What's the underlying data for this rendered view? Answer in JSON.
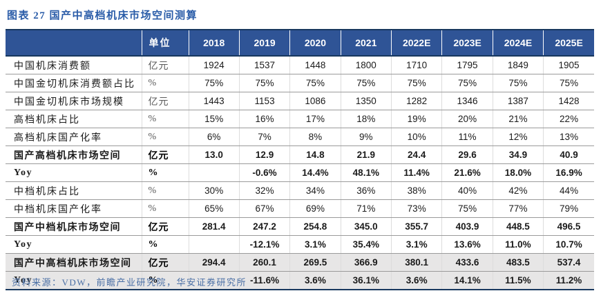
{
  "title": "图表 27  国产中高档机床市场空间测算",
  "table": {
    "unit_header": "单位",
    "year_headers": [
      "2018",
      "2019",
      "2020",
      "2021",
      "2022E",
      "2023E",
      "2024E",
      "2025E"
    ],
    "rows": [
      {
        "label": "中国机床消费额",
        "unit": "亿元",
        "bold": false,
        "shaded": false,
        "values": [
          "1924",
          "1537",
          "1448",
          "1800",
          "1710",
          "1795",
          "1849",
          "1905"
        ]
      },
      {
        "label": "中国金切机床消费额占比",
        "unit": "%",
        "bold": false,
        "shaded": false,
        "values": [
          "75%",
          "75%",
          "75%",
          "75%",
          "75%",
          "75%",
          "75%",
          "75%"
        ]
      },
      {
        "label": "中国金切机床市场规模",
        "unit": "亿元",
        "bold": false,
        "shaded": false,
        "values": [
          "1443",
          "1153",
          "1086",
          "1350",
          "1282",
          "1346",
          "1387",
          "1428"
        ]
      },
      {
        "label": "高档机床占比",
        "unit": "%",
        "bold": false,
        "shaded": false,
        "values": [
          "15%",
          "16%",
          "17%",
          "18%",
          "19%",
          "20%",
          "21%",
          "22%"
        ]
      },
      {
        "label": "高档机床国产化率",
        "unit": "%",
        "bold": false,
        "shaded": false,
        "values": [
          "6%",
          "7%",
          "8%",
          "9%",
          "10%",
          "11%",
          "12%",
          "13%"
        ]
      },
      {
        "label": "国产高档机床市场空间",
        "unit": "亿元",
        "bold": true,
        "shaded": false,
        "values": [
          "13.0",
          "12.9",
          "14.8",
          "21.9",
          "24.4",
          "29.6",
          "34.9",
          "40.9"
        ]
      },
      {
        "label": "Yoy",
        "unit": "%",
        "bold": true,
        "shaded": false,
        "values": [
          "",
          "-0.6%",
          "14.4%",
          "48.1%",
          "11.4%",
          "21.6%",
          "18.0%",
          "16.9%"
        ]
      },
      {
        "label": "中档机床占比",
        "unit": "%",
        "bold": false,
        "shaded": false,
        "values": [
          "30%",
          "32%",
          "34%",
          "36%",
          "38%",
          "40%",
          "42%",
          "44%"
        ]
      },
      {
        "label": "中档机床国产化率",
        "unit": "%",
        "bold": false,
        "shaded": false,
        "values": [
          "65%",
          "67%",
          "69%",
          "71%",
          "73%",
          "75%",
          "77%",
          "79%"
        ]
      },
      {
        "label": "国产中档机床市场空间",
        "unit": "亿元",
        "bold": true,
        "shaded": false,
        "values": [
          "281.4",
          "247.2",
          "254.8",
          "345.0",
          "355.7",
          "403.9",
          "448.5",
          "496.5"
        ]
      },
      {
        "label": "Yoy",
        "unit": "%",
        "bold": true,
        "shaded": false,
        "values": [
          "",
          "-12.1%",
          "3.1%",
          "35.4%",
          "3.1%",
          "13.6%",
          "11.0%",
          "10.7%"
        ]
      },
      {
        "label": "国产中高档机床市场空间",
        "unit": "亿元",
        "bold": true,
        "shaded": true,
        "values": [
          "294.4",
          "260.1",
          "269.5",
          "366.9",
          "380.1",
          "433.6",
          "483.5",
          "537.4"
        ]
      },
      {
        "label": "Yoy",
        "unit": "%",
        "bold": true,
        "shaded": true,
        "values": [
          "",
          "-11.6%",
          "3.6%",
          "36.1%",
          "3.6%",
          "14.1%",
          "11.5%",
          "11.2%"
        ]
      }
    ]
  },
  "footer": "资料来源：VDW，前瞻产业研究院，华安证券研究所",
  "colors": {
    "title_color": "#2A5CA8",
    "header_bg": "#2F5496",
    "header_border": "#17375E",
    "row_line": "#9A9A9A",
    "shaded_bg": "#E7E6E6",
    "footer_color": "#4A6FA5"
  }
}
